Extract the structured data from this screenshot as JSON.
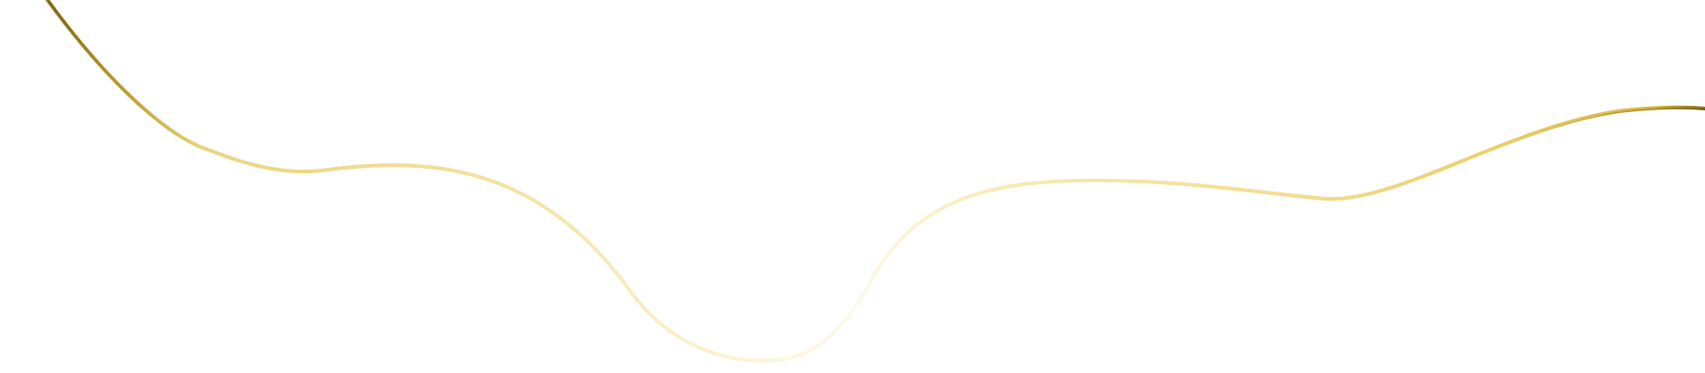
{
  "colors": {
    "background": "#ffffff",
    "line_dark": "#6e5a12",
    "line_gold": "#d8b53a",
    "line_light": "#f3de8e",
    "line_faint": "#fbf2cf"
  },
  "decoration": {
    "icon": "gold-wavy-line"
  }
}
